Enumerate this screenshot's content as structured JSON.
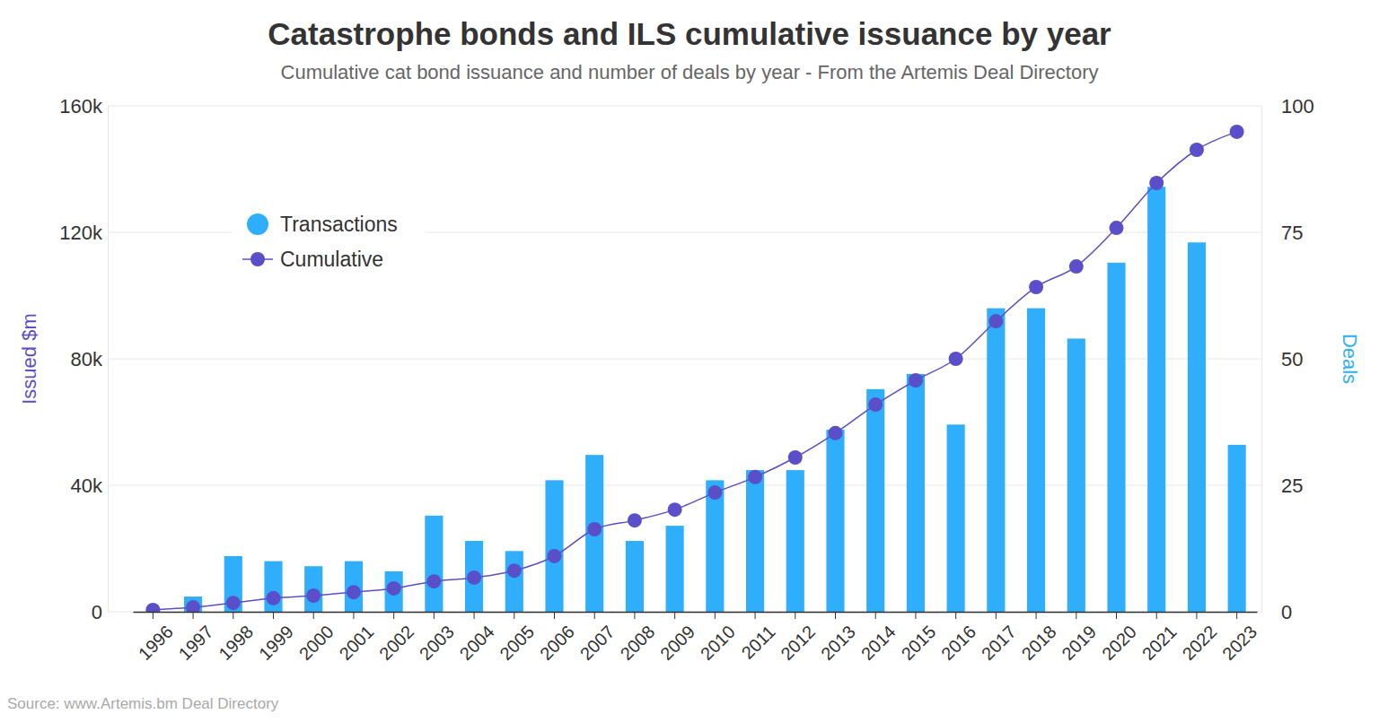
{
  "chart_data": {
    "type": "bar",
    "title": "Catastrophe bonds and ILS cumulative issuance by year",
    "subtitle": "Cumulative cat bond issuance and number of deals by year - From the Artemis Deal Directory",
    "source": "Source: www.Artemis.bm Deal Directory",
    "y_label": "Issued $m",
    "y2_label": "Deals",
    "categories": [
      "1996",
      "1997",
      "1998",
      "1999",
      "2000",
      "2001",
      "2002",
      "2003",
      "2004",
      "2005",
      "2006",
      "2007",
      "2008",
      "2009",
      "2010",
      "2011",
      "2012",
      "2013",
      "2014",
      "2015",
      "2016",
      "2017",
      "2018",
      "2019",
      "2020",
      "2021",
      "2022",
      "2023"
    ],
    "series": [
      {
        "name": "Transactions",
        "type": "bar",
        "axis": "y2",
        "color": "#2eaefb",
        "values": [
          0,
          3,
          11,
          10,
          9,
          10,
          8,
          19,
          14,
          12,
          26,
          31,
          14,
          17,
          26,
          28,
          28,
          36,
          44,
          47,
          37,
          60,
          60,
          54,
          69,
          84,
          73,
          33
        ]
      },
      {
        "name": "Cumulative",
        "type": "line",
        "axis": "y",
        "color": "#5a4fc8",
        "marker": "circle",
        "values": [
          600,
          1400,
          2800,
          4300,
          5100,
          6200,
          7400,
          9600,
          10800,
          13000,
          17600,
          26100,
          28900,
          32300,
          37700,
          42600,
          48800,
          56500,
          65500,
          73200,
          80000,
          91900,
          102700,
          109200,
          121400,
          135600,
          146100,
          151800
        ]
      }
    ],
    "ylim": [
      0,
      160000
    ],
    "yticks": [
      0,
      {
        "value": 40000,
        "label": "40k"
      },
      {
        "value": 80000,
        "label": "80k"
      },
      {
        "value": 120000,
        "label": "120k"
      },
      {
        "value": 160000,
        "label": "160k"
      }
    ],
    "y2lim": [
      0,
      100
    ],
    "y2ticks": [
      0,
      25,
      50,
      75,
      100
    ],
    "grid": true,
    "legend": "top-left"
  }
}
